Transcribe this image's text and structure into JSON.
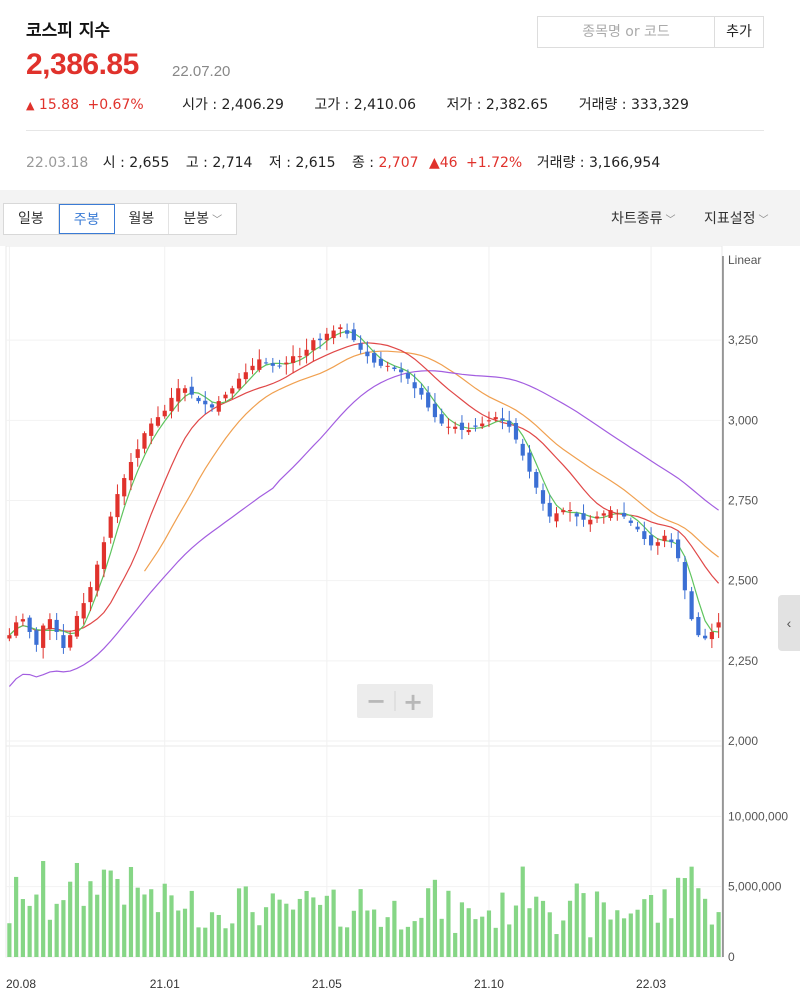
{
  "header": {
    "title": "코스피 지수",
    "price": "2,386.85",
    "date": "22.07.20",
    "change_arrow": "▲",
    "change": "15.88",
    "change_pct": "+0.67%",
    "open_label": "시가 : ",
    "open": "2,406.29",
    "high_label": "고가 : ",
    "high": "2,410.06",
    "low_label": "저가 : ",
    "low": "2,382.65",
    "volume_label": "거래량 : ",
    "volume": "333,329"
  },
  "search": {
    "placeholder": "종목명 or 코드",
    "add_label": "추가"
  },
  "week_summary": {
    "date": "22.03.18",
    "open_label": "시 : ",
    "open": "2,655",
    "high_label": "고 : ",
    "high": "2,714",
    "low_label": "저 : ",
    "low": "2,615",
    "close_label": "종 : ",
    "close": "2,707",
    "change": "▲46",
    "change_pct": "+1.72%",
    "volume_label": "거래량 : ",
    "volume": "3,166,954"
  },
  "toolbar": {
    "tabs": [
      {
        "label": "일봉",
        "active": false
      },
      {
        "label": "주봉",
        "active": true
      },
      {
        "label": "월봉",
        "active": false
      },
      {
        "label": "분봉",
        "active": false
      }
    ],
    "chart_type_label": "차트종류",
    "indicator_label": "지표설정"
  },
  "zoom": {
    "minus": "−",
    "plus": "+"
  },
  "colors": {
    "up": "#e0322c",
    "down": "#3b6fd4",
    "ma5": "#5ec45e",
    "ma20": "#e04848",
    "ma60": "#a35ee0",
    "ma120": "#f0a050",
    "volume": "#86d686"
  },
  "chart_data": {
    "type": "candlestick",
    "scale_label": "Linear",
    "price_ticks": [
      "2,000",
      "2,250",
      "2,500",
      "2,750",
      "3,000",
      "3,250"
    ],
    "price_range": [
      2000,
      3500
    ],
    "volume_ticks": [
      "0",
      "5,000,000",
      "10,000,000"
    ],
    "volume_range": [
      0,
      15000000
    ],
    "x_labels": [
      "20.08",
      "21.01",
      "21.05",
      "21.10",
      "22.03"
    ],
    "x_label_index": [
      0,
      23,
      47,
      71,
      95
    ],
    "close": [
      2330,
      2370,
      2380,
      2340,
      2300,
      2360,
      2380,
      2340,
      2290,
      2330,
      2390,
      2430,
      2480,
      2550,
      2620,
      2700,
      2770,
      2820,
      2870,
      2910,
      2960,
      2990,
      3010,
      3030,
      3070,
      3100,
      3100,
      3080,
      3060,
      3050,
      3040,
      3060,
      3080,
      3100,
      3130,
      3150,
      3170,
      3190,
      3180,
      3170,
      3170,
      3180,
      3200,
      3200,
      3220,
      3250,
      3250,
      3270,
      3280,
      3290,
      3270,
      3250,
      3220,
      3200,
      3180,
      3170,
      3170,
      3160,
      3150,
      3130,
      3100,
      3080,
      3040,
      3010,
      2990,
      2980,
      2980,
      2970,
      2970,
      2980,
      2990,
      3000,
      3010,
      3000,
      2980,
      2940,
      2890,
      2840,
      2790,
      2740,
      2700,
      2710,
      2720,
      2720,
      2700,
      2690,
      2690,
      2700,
      2710,
      2720,
      2710,
      2700,
      2680,
      2660,
      2630,
      2610,
      2620,
      2640,
      2620,
      2570,
      2470,
      2380,
      2330,
      2320,
      2340,
      2370
    ]
  }
}
